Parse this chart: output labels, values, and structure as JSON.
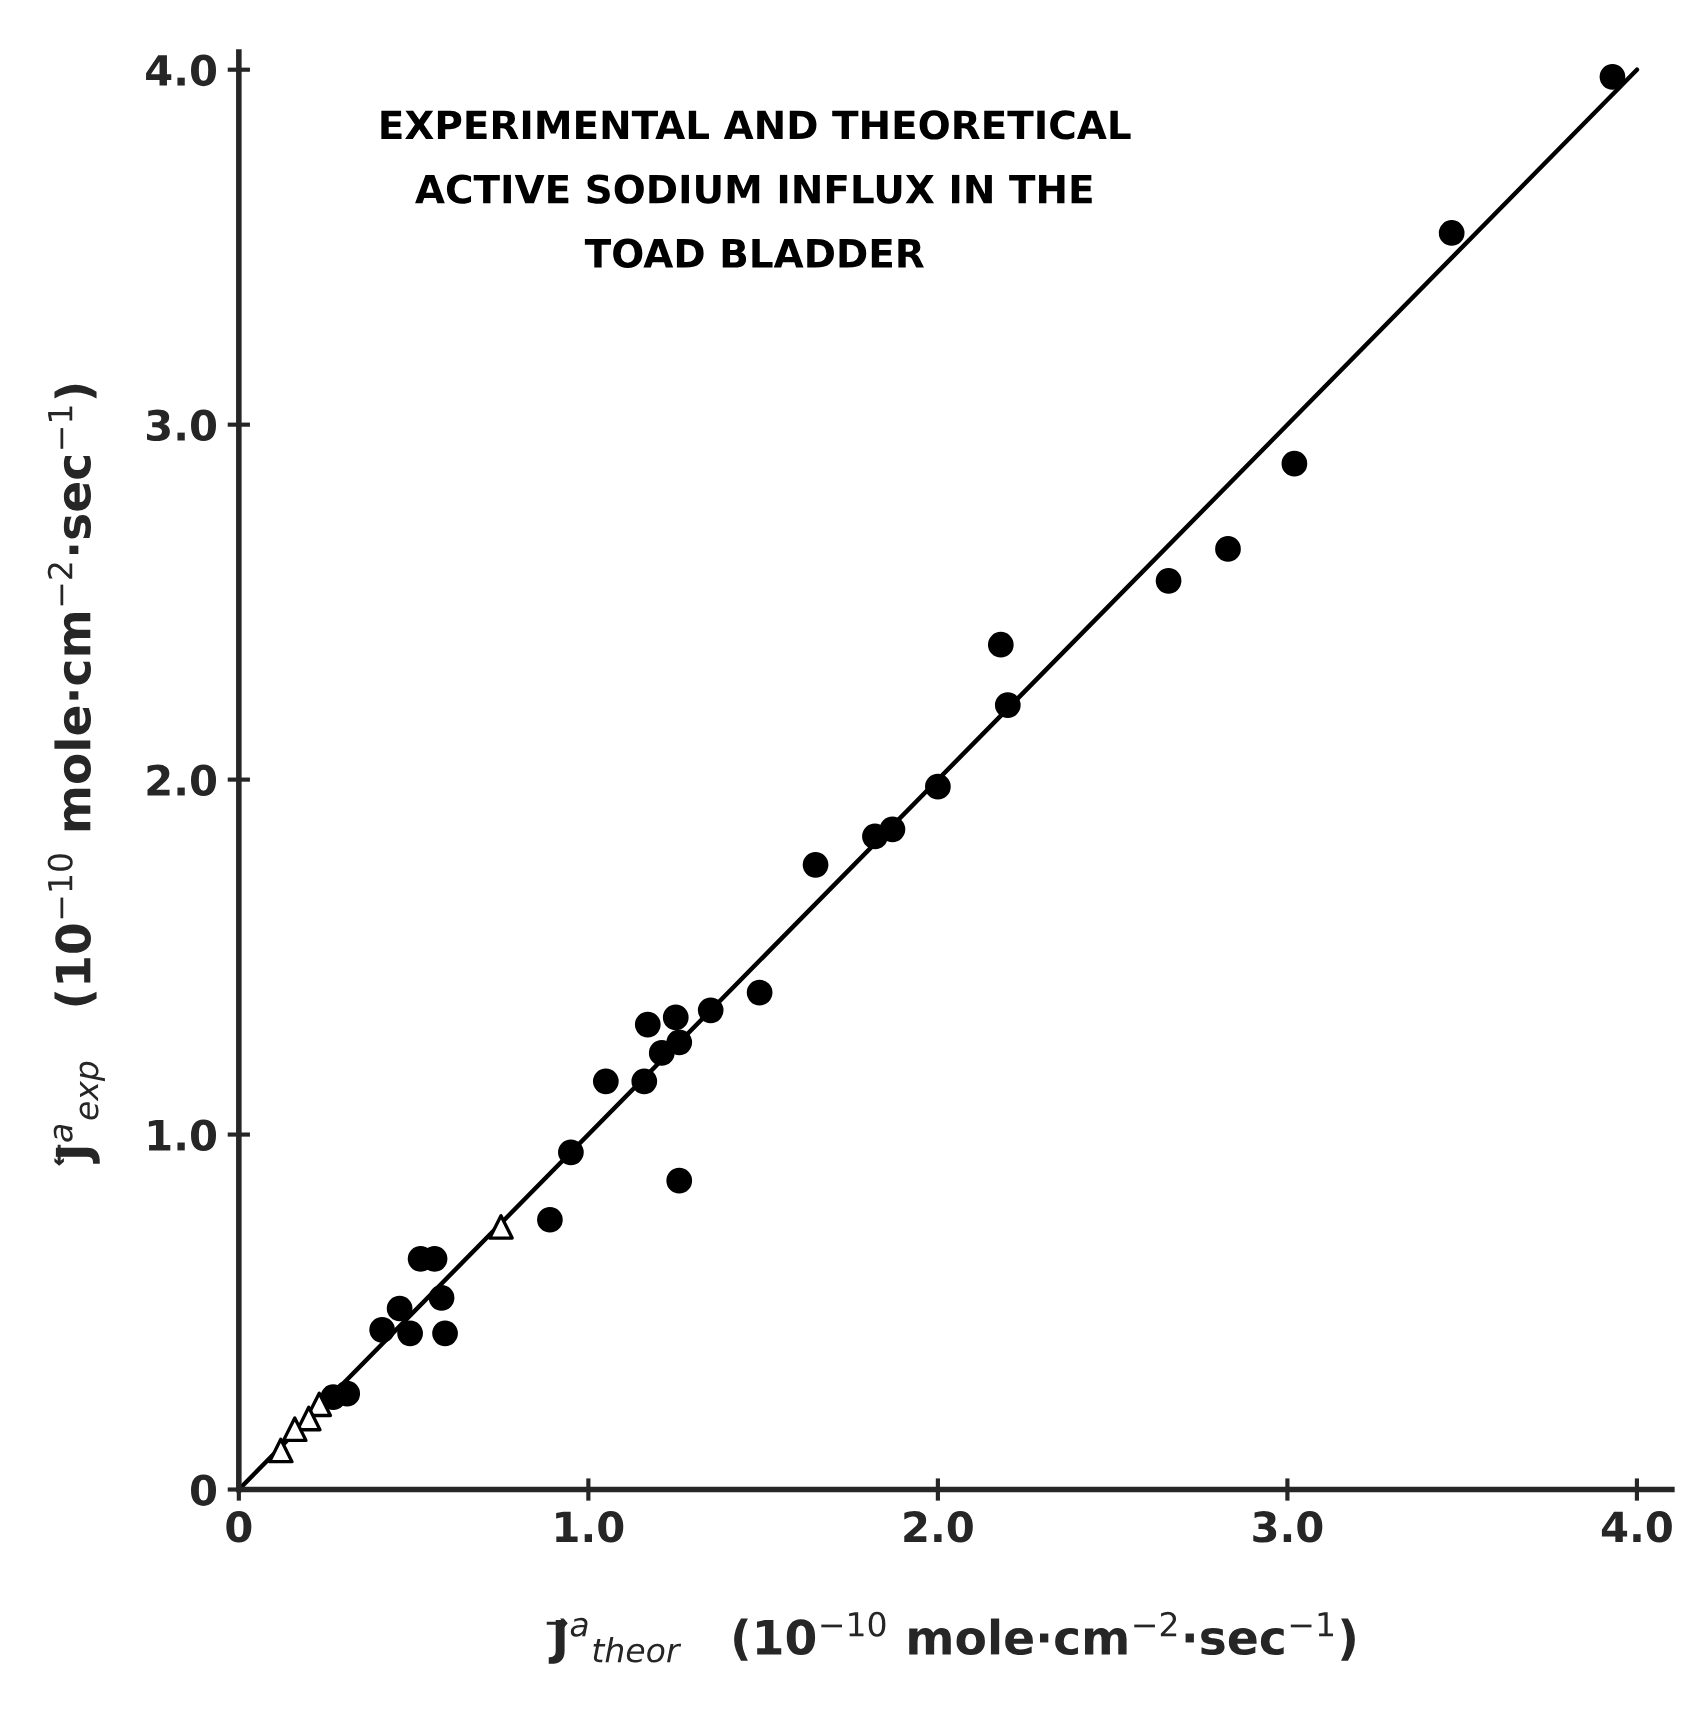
{
  "chart_data": {
    "type": "scatter",
    "title": "EXPERIMENTAL AND THEORETICAL\nACTIVE SODIUM INFLUX IN THE\nTOAD BLADDER",
    "xlabel": "J⃗$^{a}$$_{theor}$   (10$^{−10}$ mole·cm$^{−2}$·sec$^{−1}$)",
    "ylabel": "J⃖$^{a}$$_{exp}$   (10$^{−10}$ mole·cm$^{−2}$·sec$^{−1}$)",
    "xlim": [
      0,
      4.1
    ],
    "ylim": [
      0,
      4.05
    ],
    "xticks": [
      {
        "value": 0,
        "label": "0"
      },
      {
        "value": 1.0,
        "label": "1.0"
      },
      {
        "value": 2.0,
        "label": "2.0"
      },
      {
        "value": 3.0,
        "label": "3.0"
      },
      {
        "value": 4.0,
        "label": "4.0"
      }
    ],
    "yticks": [
      {
        "value": 0,
        "label": "0"
      },
      {
        "value": 1.0,
        "label": "1.0"
      },
      {
        "value": 2.0,
        "label": "2.0"
      },
      {
        "value": 3.0,
        "label": "3.0"
      },
      {
        "value": 4.0,
        "label": "4.0"
      }
    ],
    "grid": false,
    "legend": false,
    "series": [
      {
        "type": "scatter",
        "marker": "circle",
        "color": "#000000",
        "x": [
          3.93,
          3.47,
          3.02,
          2.83,
          2.66,
          2.18,
          2.2,
          2.0,
          1.87,
          1.82,
          1.65,
          1.49,
          1.35,
          1.25,
          1.17,
          1.26,
          1.21,
          1.16,
          1.05,
          0.95,
          1.26,
          0.89,
          0.52,
          0.56,
          0.58,
          0.59,
          0.46,
          0.41,
          0.49,
          0.31,
          0.27
        ],
        "values": [
          3.98,
          3.54,
          2.89,
          2.65,
          2.56,
          2.38,
          2.21,
          1.98,
          1.86,
          1.84,
          1.76,
          1.4,
          1.35,
          1.33,
          1.31,
          1.26,
          1.23,
          1.15,
          1.15,
          0.95,
          0.87,
          0.76,
          0.65,
          0.65,
          0.54,
          0.44,
          0.51,
          0.45,
          0.44,
          0.27,
          0.26
        ]
      },
      {
        "type": "scatter",
        "marker": "triangle",
        "color": "#ffffff",
        "x": [
          0.75,
          0.23,
          0.2,
          0.16,
          0.12
        ],
        "values": [
          0.74,
          0.24,
          0.2,
          0.17,
          0.11
        ]
      },
      {
        "type": "line",
        "marker": "none",
        "color": "#000000",
        "x": [
          0,
          4.0
        ],
        "values": [
          0,
          4.0
        ]
      }
    ]
  }
}
